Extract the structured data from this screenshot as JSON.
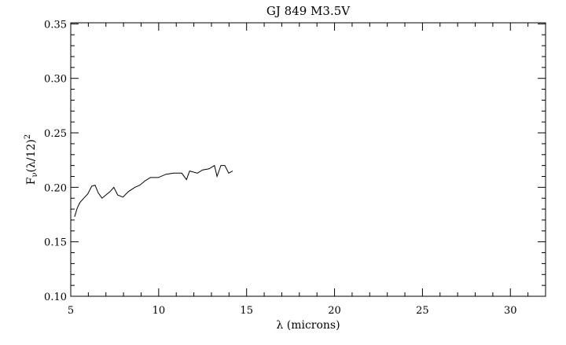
{
  "chart_data": {
    "type": "line",
    "title": "GJ 849 M3.5V",
    "xlabel": "λ (microns)",
    "ylabel": {
      "main": "F",
      "sub": "ν",
      "rest": "(λ/12)",
      "sup": "2"
    },
    "xlim": [
      5,
      32
    ],
    "ylim": [
      0.1,
      0.351
    ],
    "xticks": [
      5,
      10,
      15,
      20,
      25,
      30
    ],
    "xtick_labels": [
      "5",
      "10",
      "15",
      "20",
      "25",
      "30"
    ],
    "xminor_step": 1,
    "yticks": [
      0.1,
      0.15,
      0.2,
      0.25,
      0.3,
      0.35
    ],
    "ytick_labels": [
      "0.10",
      "0.15",
      "0.20",
      "0.25",
      "0.30",
      "0.35"
    ],
    "yminor_step": 0.01,
    "grid": false,
    "line_color": "#000000",
    "series": [
      {
        "x": [
          5.22,
          5.37,
          5.52,
          5.74,
          5.97,
          6.19,
          6.38,
          6.56,
          6.78,
          7.0,
          7.23,
          7.45,
          7.67,
          7.97,
          8.27,
          8.64,
          8.93,
          9.23,
          9.53,
          9.98,
          10.42,
          10.87,
          11.31,
          11.58,
          11.76,
          12.2,
          12.5,
          12.87,
          13.17,
          13.32,
          13.54,
          13.76,
          13.98,
          14.21
        ],
        "y": [
          0.173,
          0.181,
          0.186,
          0.19,
          0.194,
          0.201,
          0.202,
          0.195,
          0.19,
          0.193,
          0.196,
          0.2,
          0.193,
          0.191,
          0.196,
          0.2,
          0.202,
          0.206,
          0.209,
          0.209,
          0.212,
          0.213,
          0.213,
          0.207,
          0.215,
          0.213,
          0.216,
          0.217,
          0.22,
          0.21,
          0.22,
          0.22,
          0.213,
          0.215
        ]
      }
    ]
  }
}
